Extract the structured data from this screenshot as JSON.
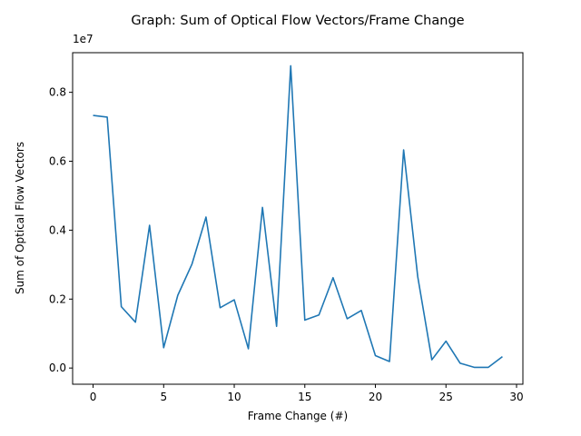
{
  "chart_data": {
    "type": "line",
    "title": "Graph: Sum of Optical Flow Vectors/Frame Change",
    "xlabel": "Frame Change (#)",
    "ylabel": "Sum of Optical Flow Vectors",
    "y_offset_label": "1e7",
    "xlim": [
      -1.45,
      30.45
    ],
    "ylim": [
      -0.047,
      0.915
    ],
    "xticks": [
      0,
      5,
      10,
      15,
      20,
      25,
      30
    ],
    "yticks": [
      0.0,
      0.2,
      0.4,
      0.6,
      0.8
    ],
    "ytick_labels": [
      "0.0",
      "0.2",
      "0.4",
      "0.6",
      "0.8"
    ],
    "grid": false,
    "series": [
      {
        "color": "#1f77b4",
        "x": [
          0,
          1,
          2,
          3,
          4,
          5,
          6,
          7,
          8,
          9,
          10,
          11,
          12,
          13,
          14,
          15,
          16,
          17,
          18,
          19,
          20,
          21,
          22,
          23,
          24,
          25,
          26,
          27,
          28,
          29
        ],
        "y": [
          0.733,
          0.728,
          0.178,
          0.133,
          0.414,
          0.059,
          0.211,
          0.301,
          0.438,
          0.175,
          0.198,
          0.056,
          0.466,
          0.121,
          0.877,
          0.139,
          0.154,
          0.262,
          0.143,
          0.167,
          0.036,
          0.019,
          0.633,
          0.265,
          0.024,
          0.078,
          0.014,
          0.002,
          0.002,
          0.033
        ]
      }
    ]
  }
}
